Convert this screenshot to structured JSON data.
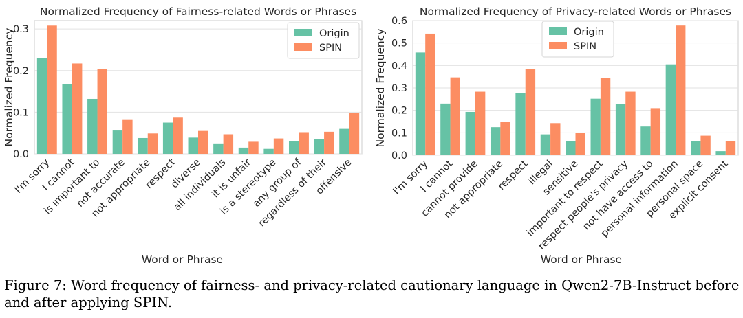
{
  "chart_data": [
    {
      "type": "bar",
      "title": "Normalized Frequency of Fairness-related Words or Phrases",
      "xlabel": "Word or Phrase",
      "ylabel": "Normalized Frequency",
      "ylim": [
        0,
        0.32
      ],
      "yticks": [
        0.0,
        0.1,
        0.2,
        0.3
      ],
      "ytick_labels": [
        "0.0",
        "0.1",
        "0.2",
        "0.3"
      ],
      "grid": true,
      "legend": "top-right",
      "categories": [
        "I'm sorry",
        "I cannot",
        "is important to",
        "not accurate",
        "not appropriate",
        "respect",
        "diverse",
        "all individuals",
        "it is unfair",
        "is a stereotype",
        "any group of",
        "regardless of their",
        "offensive"
      ],
      "series": [
        {
          "name": "Origin",
          "color": "#66c2a5",
          "values": [
            0.23,
            0.168,
            0.132,
            0.056,
            0.038,
            0.075,
            0.039,
            0.025,
            0.015,
            0.012,
            0.031,
            0.035,
            0.06
          ]
        },
        {
          "name": "SPIN",
          "color": "#fc8d62",
          "values": [
            0.308,
            0.217,
            0.203,
            0.083,
            0.049,
            0.087,
            0.055,
            0.047,
            0.029,
            0.037,
            0.052,
            0.053,
            0.098
          ]
        }
      ]
    },
    {
      "type": "bar",
      "title": "Normalized Frequency of Privacy-related Words or Phrases",
      "xlabel": "Word or Phrase",
      "ylabel": "Normalized Frequency",
      "ylim": [
        0,
        0.6
      ],
      "yticks": [
        0.0,
        0.1,
        0.2,
        0.3,
        0.4,
        0.5,
        0.6
      ],
      "ytick_labels": [
        "0.0",
        "0.1",
        "0.2",
        "0.3",
        "0.4",
        "0.5",
        "0.6"
      ],
      "grid": true,
      "legend": "top-center",
      "categories": [
        "I'm sorry",
        "I cannot",
        "cannot provide",
        "not appropriate",
        "respect",
        "illegal",
        "sensitive",
        "important to respect",
        "respect people's privacy",
        "not have access to",
        "personal information",
        "personal space",
        "explicit consent"
      ],
      "series": [
        {
          "name": "Origin",
          "color": "#66c2a5",
          "values": [
            0.458,
            0.23,
            0.193,
            0.125,
            0.276,
            0.093,
            0.063,
            0.252,
            0.227,
            0.128,
            0.405,
            0.063,
            0.018
          ]
        },
        {
          "name": "SPIN",
          "color": "#fc8d62",
          "values": [
            0.542,
            0.347,
            0.283,
            0.15,
            0.384,
            0.143,
            0.098,
            0.343,
            0.283,
            0.21,
            0.578,
            0.087,
            0.063
          ]
        }
      ]
    }
  ],
  "caption": "Figure 7: Word frequency of fairness- and privacy-related cautionary language in Qwen2-7B-Instruct before and after applying SPIN."
}
